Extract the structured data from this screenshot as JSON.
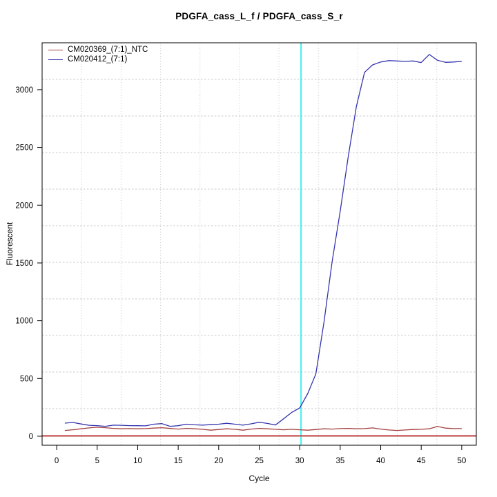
{
  "window": {
    "background": "#ffffff"
  },
  "chart_data": {
    "type": "line",
    "title": "PDGFA_cass_L_f / PDGFA_cass_S_r",
    "xlabel": "Cycle",
    "ylabel": "Fluorescent",
    "xlim": [
      -1.8,
      51.8
    ],
    "ylim": [
      -78,
      3406
    ],
    "x_ticks": [
      0,
      5,
      10,
      15,
      20,
      25,
      30,
      35,
      40,
      45,
      50
    ],
    "y_ticks": [
      0,
      500,
      1000,
      1500,
      2000,
      2500,
      3000
    ],
    "grid": {
      "on": true,
      "divisions": 11,
      "color": "#c9c9c9"
    },
    "legend_position": "topleft",
    "ct_line": {
      "x": 30.16,
      "color": "#00f0f0"
    },
    "threshold_line": {
      "y": 0,
      "color": "#c14949"
    },
    "axis_color": "#000000",
    "cycles": [
      1,
      2,
      3,
      4,
      5,
      6,
      7,
      8,
      9,
      10,
      11,
      12,
      13,
      14,
      15,
      16,
      17,
      18,
      19,
      20,
      21,
      22,
      23,
      24,
      25,
      26,
      27,
      28,
      29,
      30,
      31,
      32,
      33,
      34,
      35,
      36,
      37,
      38,
      39,
      40,
      41,
      42,
      43,
      44,
      45,
      46,
      47,
      48,
      49,
      50
    ],
    "series": [
      {
        "name": "CM020369_(7:1)_NTC",
        "color": "#a33e3e",
        "values": [
          50,
          56,
          64,
          72,
          78,
          74,
          68,
          64,
          66,
          64,
          66,
          70,
          74,
          67,
          62,
          68,
          64,
          60,
          52,
          58,
          64,
          60,
          52,
          62,
          68,
          64,
          60,
          56,
          60,
          56,
          52,
          58,
          64,
          62,
          66,
          68,
          64,
          66,
          72,
          62,
          54,
          50,
          54,
          58,
          60,
          64,
          85,
          70,
          66,
          66
        ]
      },
      {
        "name": "CM020412_(7:1)",
        "color": "#3434ae",
        "values": [
          113,
          119,
          106,
          95,
          92,
          86,
          96,
          95,
          92,
          91,
          90,
          104,
          109,
          86,
          91,
          104,
          99,
          96,
          100,
          104,
          112,
          104,
          96,
          107,
          121,
          111,
          97,
          150,
          205,
          245,
          370,
          540,
          990,
          1510,
          1950,
          2425,
          2855,
          3150,
          3215,
          3240,
          3252,
          3249,
          3245,
          3249,
          3235,
          3305,
          3255,
          3237,
          3240,
          3245
        ]
      }
    ]
  }
}
